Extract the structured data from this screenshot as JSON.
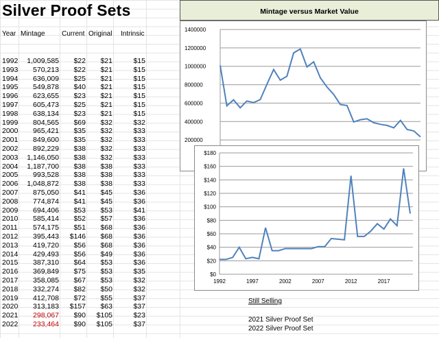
{
  "sheet": {
    "title": "Silver Proof Sets",
    "headers": {
      "year": "Year",
      "mintage": "Mintage",
      "current": "Current",
      "original": "Original",
      "intrinsic": "Intrinsic"
    },
    "rows": [
      {
        "year": "1992",
        "mintage": "1,009,585",
        "current": "$22",
        "original": "$21",
        "intrinsic": "$15"
      },
      {
        "year": "1993",
        "mintage": "570,213",
        "current": "$22",
        "original": "$21",
        "intrinsic": "$15"
      },
      {
        "year": "1994",
        "mintage": "636,009",
        "current": "$25",
        "original": "$21",
        "intrinsic": "$15"
      },
      {
        "year": "1995",
        "mintage": "549,878",
        "current": "$40",
        "original": "$21",
        "intrinsic": "$15"
      },
      {
        "year": "1996",
        "mintage": "623,655",
        "current": "$23",
        "original": "$21",
        "intrinsic": "$15"
      },
      {
        "year": "1997",
        "mintage": "605,473",
        "current": "$25",
        "original": "$21",
        "intrinsic": "$15"
      },
      {
        "year": "1998",
        "mintage": "638,134",
        "current": "$23",
        "original": "$21",
        "intrinsic": "$15"
      },
      {
        "year": "1999",
        "mintage": "804,565",
        "current": "$69",
        "original": "$32",
        "intrinsic": "$32"
      },
      {
        "year": "2000",
        "mintage": "965,421",
        "current": "$35",
        "original": "$32",
        "intrinsic": "$33"
      },
      {
        "year": "2001",
        "mintage": "849,600",
        "current": "$35",
        "original": "$32",
        "intrinsic": "$33"
      },
      {
        "year": "2002",
        "mintage": "892,229",
        "current": "$38",
        "original": "$32",
        "intrinsic": "$33"
      },
      {
        "year": "2003",
        "mintage": "1,146,050",
        "current": "$38",
        "original": "$32",
        "intrinsic": "$33"
      },
      {
        "year": "2004",
        "mintage": "1,187,700",
        "current": "$38",
        "original": "$38",
        "intrinsic": "$33"
      },
      {
        "year": "2005",
        "mintage": "993,528",
        "current": "$38",
        "original": "$38",
        "intrinsic": "$33"
      },
      {
        "year": "2006",
        "mintage": "1,048,872",
        "current": "$38",
        "original": "$38",
        "intrinsic": "$33"
      },
      {
        "year": "2007",
        "mintage": "875,050",
        "current": "$41",
        "original": "$45",
        "intrinsic": "$36"
      },
      {
        "year": "2008",
        "mintage": "774,874",
        "current": "$41",
        "original": "$45",
        "intrinsic": "$36"
      },
      {
        "year": "2009",
        "mintage": "694,406",
        "current": "$53",
        "original": "$53",
        "intrinsic": "$41"
      },
      {
        "year": "2010",
        "mintage": "585,414",
        "current": "$52",
        "original": "$57",
        "intrinsic": "$36"
      },
      {
        "year": "2011",
        "mintage": "574,175",
        "current": "$51",
        "original": "$68",
        "intrinsic": "$36"
      },
      {
        "year": "2012",
        "mintage": "395,443",
        "current": "$146",
        "original": "$68",
        "intrinsic": "$36"
      },
      {
        "year": "2013",
        "mintage": "419,720",
        "current": "$56",
        "original": "$68",
        "intrinsic": "$36"
      },
      {
        "year": "2014",
        "mintage": "429,493",
        "current": "$56",
        "original": "$49",
        "intrinsic": "$36"
      },
      {
        "year": "2015",
        "mintage": "387,310",
        "current": "$64",
        "original": "$53",
        "intrinsic": "$36"
      },
      {
        "year": "2016",
        "mintage": "369,849",
        "current": "$75",
        "original": "$53",
        "intrinsic": "$35"
      },
      {
        "year": "2017",
        "mintage": "358,085",
        "current": "$67",
        "original": "$53",
        "intrinsic": "$32"
      },
      {
        "year": "2018",
        "mintage": "332,274",
        "current": "$82",
        "original": "$50",
        "intrinsic": "$32"
      },
      {
        "year": "2019",
        "mintage": "412,708",
        "current": "$72",
        "original": "$55",
        "intrinsic": "$37"
      },
      {
        "year": "2020",
        "mintage": "313,183",
        "current": "$157",
        "original": "$63",
        "intrinsic": "$37"
      },
      {
        "year": "2021",
        "mintage": "298,067",
        "current": "$90",
        "original": "$105",
        "intrinsic": "$23",
        "mintage_color": "#c00000"
      },
      {
        "year": "2022",
        "mintage": "233,464",
        "current": "$90",
        "original": "$105",
        "intrinsic": "$37",
        "mintage_color": "#c00000"
      }
    ],
    "notes": {
      "still_selling": "Still Selling",
      "line1": "2021 Silver Proof Set",
      "line2": "2022 Silver Proof Set"
    }
  },
  "chart_data": [
    {
      "type": "line",
      "title": "Mintage versus Market Value",
      "x": [
        1992,
        1993,
        1994,
        1995,
        1996,
        1997,
        1998,
        1999,
        2000,
        2001,
        2002,
        2003,
        2004,
        2005,
        2006,
        2007,
        2008,
        2009,
        2010,
        2011,
        2012,
        2013,
        2014,
        2015,
        2016,
        2017,
        2018,
        2019,
        2020,
        2021,
        2022
      ],
      "values": [
        1009585,
        570213,
        636009,
        549878,
        623655,
        605473,
        638134,
        804565,
        965421,
        849600,
        892229,
        1146050,
        1187700,
        993528,
        1048872,
        875050,
        774874,
        694406,
        585414,
        574175,
        395443,
        419720,
        429493,
        387310,
        369849,
        358085,
        332274,
        412708,
        313183,
        298067,
        233464
      ],
      "ylim": [
        0,
        1400000
      ],
      "yticks": [
        "1400000",
        "1200000",
        "1000000",
        "800000",
        "600000",
        "400000",
        "200000"
      ],
      "color": "#4f81bd"
    },
    {
      "type": "line",
      "x": [
        1992,
        1993,
        1994,
        1995,
        1996,
        1997,
        1998,
        1999,
        2000,
        2001,
        2002,
        2003,
        2004,
        2005,
        2006,
        2007,
        2008,
        2009,
        2010,
        2011,
        2012,
        2013,
        2014,
        2015,
        2016,
        2017,
        2018,
        2019,
        2020,
        2021
      ],
      "values": [
        22,
        22,
        25,
        40,
        23,
        25,
        23,
        69,
        35,
        35,
        38,
        38,
        38,
        38,
        38,
        41,
        41,
        53,
        52,
        51,
        146,
        56,
        56,
        64,
        75,
        67,
        82,
        72,
        157,
        90
      ],
      "ylim": [
        0,
        180
      ],
      "yticks": [
        "$180",
        "$160",
        "$140",
        "$120",
        "$100",
        "$80",
        "$60",
        "$40",
        "$20",
        "$0"
      ],
      "xticks": [
        "1992",
        "1997",
        "2002",
        "2007",
        "2012",
        "2017"
      ],
      "color": "#4f81bd"
    }
  ]
}
